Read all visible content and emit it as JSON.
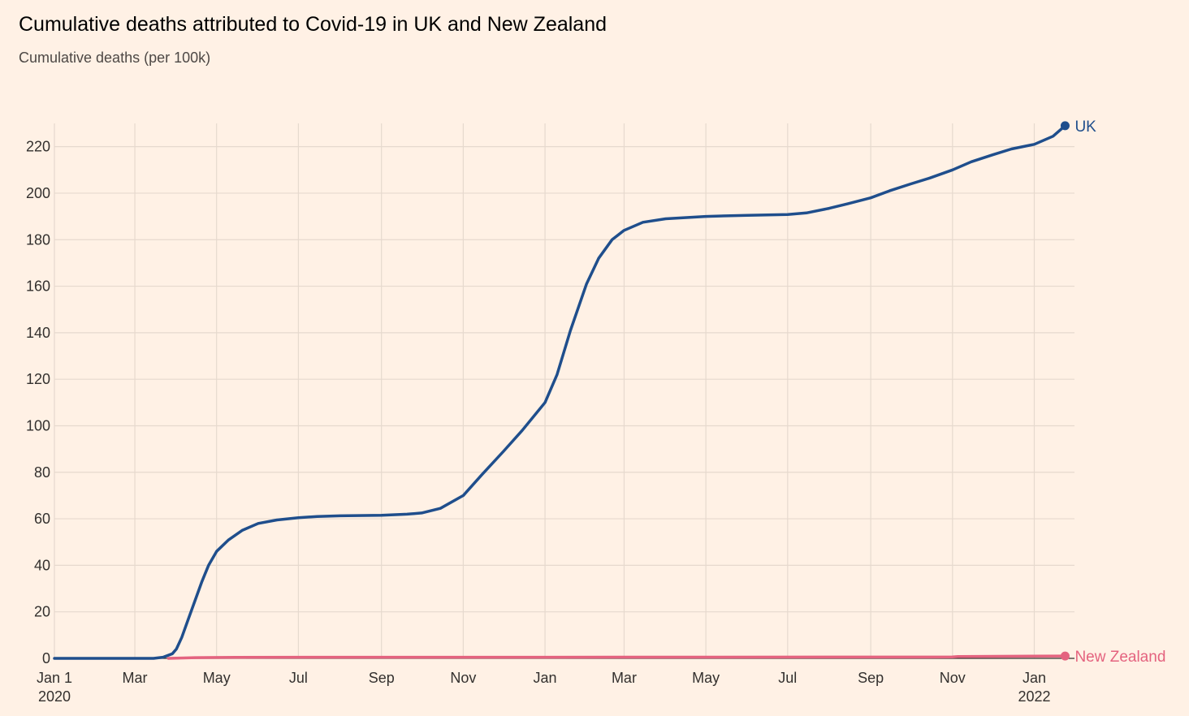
{
  "title": "Cumulative deaths attributed to Covid-19 in UK and New Zealand",
  "subtitle": "Cumulative deaths (per 100k)",
  "chart_data": {
    "type": "line",
    "title": "Cumulative deaths attributed to Covid-19 in UK and New Zealand",
    "subtitle": "Cumulative deaths (per 100k)",
    "xlabel": "",
    "ylabel": "",
    "xlim": [
      "2020-01-01",
      "2022-01-31"
    ],
    "ylim": [
      0,
      230
    ],
    "grid": true,
    "y_ticks": [
      0,
      20,
      40,
      60,
      80,
      100,
      120,
      140,
      160,
      180,
      200,
      220
    ],
    "x_ticks": [
      {
        "date": "2020-01-01",
        "label": "Jan 1",
        "sublabel": "2020"
      },
      {
        "date": "2020-03-01",
        "label": "Mar",
        "sublabel": ""
      },
      {
        "date": "2020-05-01",
        "label": "May",
        "sublabel": ""
      },
      {
        "date": "2020-07-01",
        "label": "Jul",
        "sublabel": ""
      },
      {
        "date": "2020-09-01",
        "label": "Sep",
        "sublabel": ""
      },
      {
        "date": "2020-11-01",
        "label": "Nov",
        "sublabel": ""
      },
      {
        "date": "2021-01-01",
        "label": "Jan",
        "sublabel": ""
      },
      {
        "date": "2021-03-01",
        "label": "Mar",
        "sublabel": ""
      },
      {
        "date": "2021-05-01",
        "label": "May",
        "sublabel": ""
      },
      {
        "date": "2021-07-01",
        "label": "Jul",
        "sublabel": ""
      },
      {
        "date": "2021-09-01",
        "label": "Sep",
        "sublabel": ""
      },
      {
        "date": "2021-11-01",
        "label": "Nov",
        "sublabel": ""
      },
      {
        "date": "2022-01-01",
        "label": "Jan",
        "sublabel": "2022"
      }
    ],
    "series": [
      {
        "name": "UK",
        "color": "#1F4E8C",
        "points": [
          [
            "2020-01-01",
            0
          ],
          [
            "2020-03-01",
            0
          ],
          [
            "2020-03-15",
            0
          ],
          [
            "2020-03-22",
            0.5
          ],
          [
            "2020-03-29",
            2
          ],
          [
            "2020-04-01",
            4
          ],
          [
            "2020-04-05",
            9
          ],
          [
            "2020-04-10",
            17
          ],
          [
            "2020-04-15",
            25
          ],
          [
            "2020-04-20",
            33
          ],
          [
            "2020-04-25",
            40
          ],
          [
            "2020-05-01",
            46
          ],
          [
            "2020-05-10",
            51
          ],
          [
            "2020-05-20",
            55
          ],
          [
            "2020-06-01",
            58
          ],
          [
            "2020-06-15",
            59.5
          ],
          [
            "2020-07-01",
            60.5
          ],
          [
            "2020-07-15",
            61
          ],
          [
            "2020-08-01",
            61.3
          ],
          [
            "2020-09-01",
            61.5
          ],
          [
            "2020-09-20",
            62
          ],
          [
            "2020-10-01",
            62.5
          ],
          [
            "2020-10-15",
            64.5
          ],
          [
            "2020-11-01",
            70
          ],
          [
            "2020-11-15",
            79
          ],
          [
            "2020-12-01",
            89
          ],
          [
            "2020-12-15",
            98
          ],
          [
            "2021-01-01",
            110
          ],
          [
            "2021-01-10",
            122
          ],
          [
            "2021-01-20",
            141
          ],
          [
            "2021-02-01",
            161
          ],
          [
            "2021-02-10",
            172
          ],
          [
            "2021-02-20",
            180
          ],
          [
            "2021-03-01",
            184
          ],
          [
            "2021-03-15",
            187.5
          ],
          [
            "2021-04-01",
            189
          ],
          [
            "2021-05-01",
            190
          ],
          [
            "2021-06-01",
            190.5
          ],
          [
            "2021-07-01",
            190.8
          ],
          [
            "2021-07-15",
            191.5
          ],
          [
            "2021-08-01",
            193.5
          ],
          [
            "2021-08-15",
            195.5
          ],
          [
            "2021-09-01",
            198
          ],
          [
            "2021-09-15",
            201
          ],
          [
            "2021-10-01",
            204
          ],
          [
            "2021-10-15",
            206.5
          ],
          [
            "2021-11-01",
            210
          ],
          [
            "2021-11-15",
            213.5
          ],
          [
            "2021-12-01",
            216.5
          ],
          [
            "2021-12-15",
            219
          ],
          [
            "2022-01-01",
            221
          ],
          [
            "2022-01-15",
            224.5
          ],
          [
            "2022-01-24",
            229
          ]
        ]
      },
      {
        "name": "New Zealand",
        "color": "#E4637F",
        "points": [
          [
            "2020-03-26",
            0
          ],
          [
            "2020-04-15",
            0.3
          ],
          [
            "2020-05-15",
            0.45
          ],
          [
            "2021-01-01",
            0.5
          ],
          [
            "2021-11-01",
            0.6
          ],
          [
            "2021-11-05",
            0.8
          ],
          [
            "2022-01-24",
            1
          ]
        ]
      }
    ]
  }
}
